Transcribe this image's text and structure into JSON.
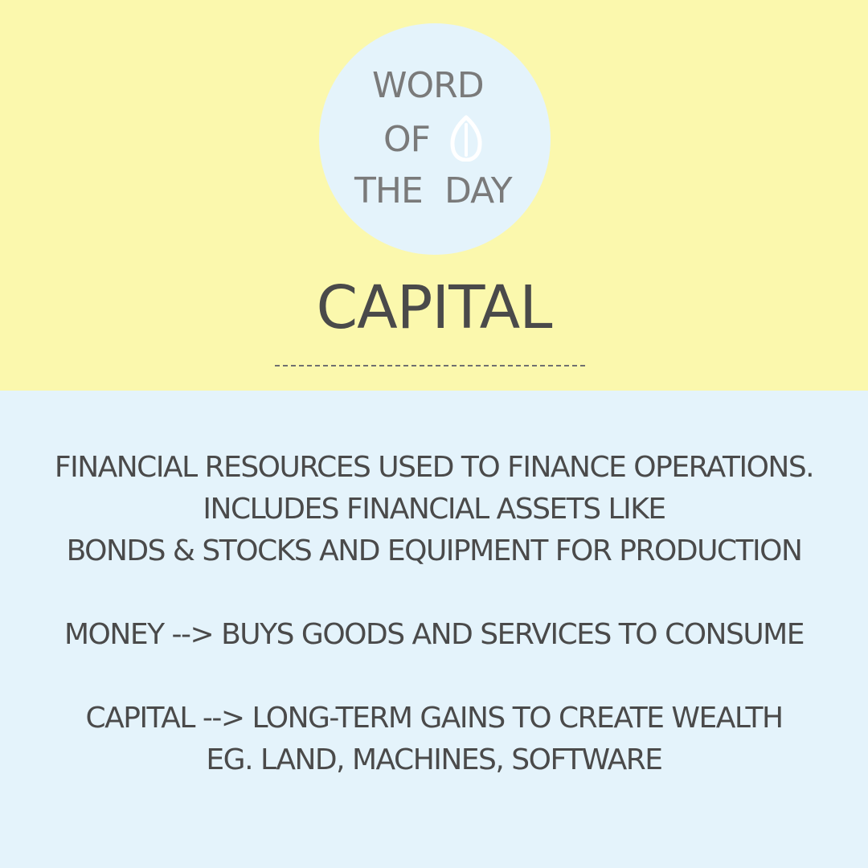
{
  "colors": {
    "top_background": "#fbf8ad",
    "bottom_background": "#e4f3fb",
    "badge": "#e4f3fb",
    "badge_text": "#7a7a7a",
    "body_text": "#4a4a4a"
  },
  "badge": {
    "word": "WORD",
    "of": "OF",
    "the": "THE",
    "day": "DAY",
    "icon": "leaf-icon"
  },
  "title": "CAPITAL",
  "definition": {
    "line1": "FINANCIAL RESOURCES USED TO FINANCE OPERATIONS.",
    "line2": "INCLUDES FINANCIAL ASSETS LIKE",
    "line3": "BONDS & STOCKS AND EQUIPMENT FOR PRODUCTION"
  },
  "contrast": {
    "money": "MONEY --> BUYS GOODS AND SERVICES TO CONSUME",
    "capital": "CAPITAL --> LONG-TERM GAINS TO CREATE WEALTH",
    "examples": "EG. LAND, MACHINES, SOFTWARE"
  }
}
